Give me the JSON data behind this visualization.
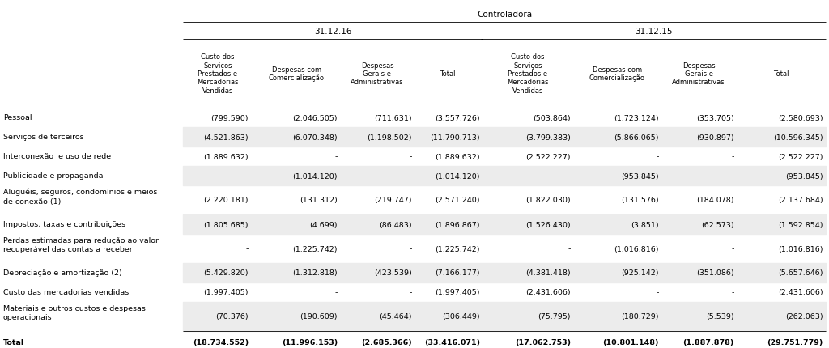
{
  "title": "Controladora",
  "period1": "31.12.16",
  "period2": "31.12.15",
  "col_headers": [
    "Custo dos\nServiços\nPrestados e\nMercadorias\nVendidas",
    "Despesas com\nComercialização",
    "Despesas\nGerais e\nAdministrativas",
    "Total",
    "Custo dos\nServiços\nPrestados e\nMercadorias\nVendidas",
    "Despesas com\nComercialização",
    "Despesas\nGerais e\nAdministrativas",
    "Total"
  ],
  "rows": [
    {
      "label": "Pessoal",
      "v": [
        "(799.590)",
        "(2.046.505)",
        "(711.631)",
        "(3.557.726)",
        "(503.864)",
        "(1.723.124)",
        "(353.705)",
        "(2.580.693)"
      ],
      "bold": false,
      "shaded": false,
      "multiline": false
    },
    {
      "label": "Serviços de terceiros",
      "v": [
        "(4.521.863)",
        "(6.070.348)",
        "(1.198.502)",
        "(11.790.713)",
        "(3.799.383)",
        "(5.866.065)",
        "(930.897)",
        "(10.596.345)"
      ],
      "bold": false,
      "shaded": true,
      "multiline": false
    },
    {
      "label": "Interconexão  e uso de rede",
      "v": [
        "(1.889.632)",
        "-",
        "-",
        "(1.889.632)",
        "(2.522.227)",
        "-",
        "-",
        "(2.522.227)"
      ],
      "bold": false,
      "shaded": false,
      "multiline": false
    },
    {
      "label": "Publicidade e propaganda",
      "v": [
        "-",
        "(1.014.120)",
        "-",
        "(1.014.120)",
        "-",
        "(953.845)",
        "-",
        "(953.845)"
      ],
      "bold": false,
      "shaded": true,
      "multiline": false
    },
    {
      "label": "Aluguéis, seguros, condomínios e meios\nde conexão (1)",
      "v": [
        "(2.220.181)",
        "(131.312)",
        "(219.747)",
        "(2.571.240)",
        "(1.822.030)",
        "(131.576)",
        "(184.078)",
        "(2.137.684)"
      ],
      "bold": false,
      "shaded": false,
      "multiline": true
    },
    {
      "label": "Impostos, taxas e contribuições",
      "v": [
        "(1.805.685)",
        "(4.699)",
        "(86.483)",
        "(1.896.867)",
        "(1.526.430)",
        "(3.851)",
        "(62.573)",
        "(1.592.854)"
      ],
      "bold": false,
      "shaded": true,
      "multiline": false
    },
    {
      "label": "Perdas estimadas para redução ao valor\nrecuperável das contas a receber",
      "v": [
        "-",
        "(1.225.742)",
        "-",
        "(1.225.742)",
        "-",
        "(1.016.816)",
        "-",
        "(1.016.816)"
      ],
      "bold": false,
      "shaded": false,
      "multiline": true
    },
    {
      "label": "Depreciação e amortização (2)",
      "v": [
        "(5.429.820)",
        "(1.312.818)",
        "(423.539)",
        "(7.166.177)",
        "(4.381.418)",
        "(925.142)",
        "(351.086)",
        "(5.657.646)"
      ],
      "bold": false,
      "shaded": true,
      "multiline": false
    },
    {
      "label": "Custo das mercadorias vendidas",
      "v": [
        "(1.997.405)",
        "-",
        "-",
        "(1.997.405)",
        "(2.431.606)",
        "-",
        "-",
        "(2.431.606)"
      ],
      "bold": false,
      "shaded": false,
      "multiline": false
    },
    {
      "label": "Materiais e outros custos e despesas\noperacionais",
      "v": [
        "(70.376)",
        "(190.609)",
        "(45.464)",
        "(306.449)",
        "(75.795)",
        "(180.729)",
        "(5.539)",
        "(262.063)"
      ],
      "bold": false,
      "shaded": true,
      "multiline": true
    },
    {
      "label": "Total",
      "v": [
        "(18.734.552)",
        "(11.996.153)",
        "(2.685.366)",
        "(33.416.071)",
        "(17.062.753)",
        "(10.801.148)",
        "(1.887.878)",
        "(29.751.779)"
      ],
      "bold": true,
      "shaded": false,
      "multiline": false
    }
  ],
  "bg_color": "#ffffff",
  "shaded_color": "#ececec",
  "text_color": "#000000",
  "line_color": "#000000"
}
